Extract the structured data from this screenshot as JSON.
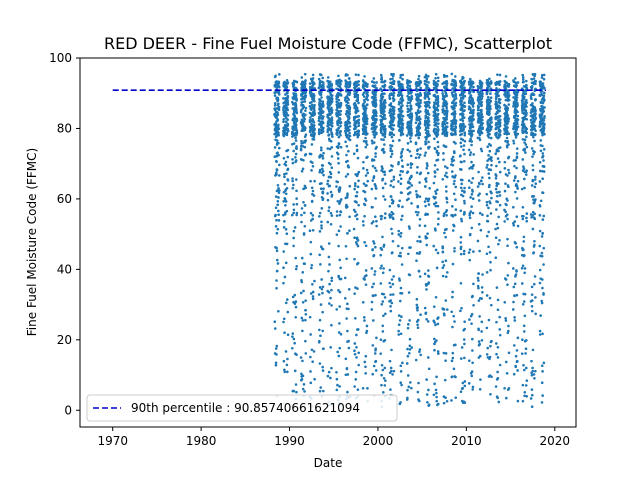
{
  "chart_data": {
    "type": "scatter",
    "title": "RED DEER - Fine Fuel Moisture Code (FFMC), Scatterplot",
    "xlabel": "Date",
    "ylabel": "Fine Fuel Moisture Code (FFMC)",
    "xlim": [
      1966.3,
      2022.4
    ],
    "ylim": [
      -4.75,
      100.0
    ],
    "xticks": [
      1970,
      1980,
      1990,
      2000,
      2010,
      2020
    ],
    "yticks": [
      0,
      20,
      40,
      60,
      80,
      100
    ],
    "grid": false,
    "legend_position": "lower-left",
    "series": [
      {
        "name": "",
        "kind": "scatter",
        "color": "#1f77b4",
        "season_start_years": [
          1988.3,
          2018.9
        ],
        "note_density": "seasonal clusters (Apr-Oct) each year, majority of points between 75 and 95"
      },
      {
        "name": "90th percentile : 90.85740661621094",
        "kind": "hline",
        "color": "#0000cc",
        "y": 90.85740661621094,
        "x_range": [
          1970,
          2019
        ]
      }
    ]
  },
  "legend": {
    "entry": "90th percentile : 90.85740661621094"
  }
}
